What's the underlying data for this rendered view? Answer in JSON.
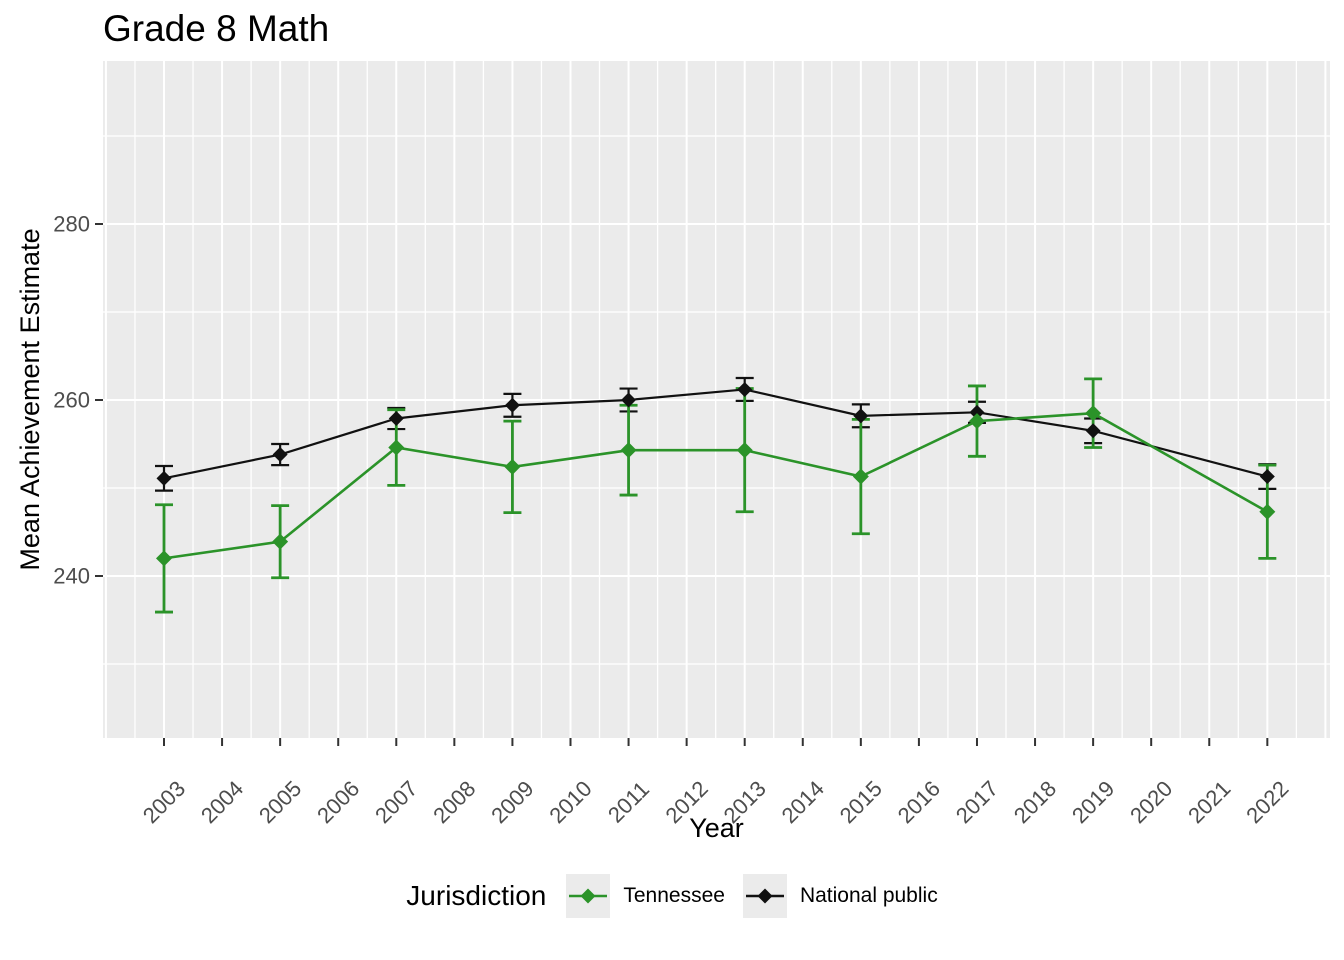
{
  "chart_data": {
    "type": "line",
    "title": "Grade 8 Math",
    "xlabel": "Year",
    "ylabel": "Mean Achievement Estimate",
    "legend": {
      "title": "Jurisdiction",
      "position": "bottom"
    },
    "x_tick_labels": [
      "2003",
      "2004",
      "2005",
      "2006",
      "2007",
      "2008",
      "2009",
      "2010",
      "2011",
      "2012",
      "2013",
      "2014",
      "2015",
      "2016",
      "2017",
      "2018",
      "2019",
      "2020",
      "2021",
      "2022"
    ],
    "y_tick_labels": [
      "240",
      "260",
      "280"
    ],
    "y_major_gridlines": [
      240,
      260,
      280
    ],
    "y_minor_gridlines": [
      230,
      250,
      270,
      290
    ],
    "x_gridline_year_range": [
      2002,
      2023
    ],
    "x_axis_year_range": [
      2003,
      2022
    ],
    "ylim_panel": [
      221,
      298.5
    ],
    "grid": true,
    "x": [
      2003,
      2005,
      2007,
      2009,
      2011,
      2013,
      2015,
      2017,
      2019,
      2022
    ],
    "series": [
      {
        "name": "Tennessee",
        "color": "#2B9329",
        "values": [
          242.0,
          243.9,
          254.6,
          252.4,
          254.3,
          254.3,
          251.3,
          257.6,
          258.5,
          247.3
        ],
        "ci_low": [
          235.9,
          239.8,
          250.3,
          247.2,
          249.2,
          247.3,
          244.8,
          253.6,
          254.6,
          242.0
        ],
        "ci_high": [
          248.1,
          248.0,
          258.9,
          257.6,
          259.4,
          261.3,
          257.8,
          261.6,
          262.4,
          252.6
        ]
      },
      {
        "name": "National public",
        "color": "#111111",
        "values": [
          251.1,
          253.8,
          257.9,
          259.4,
          260.0,
          261.2,
          258.2,
          258.6,
          256.5,
          251.3
        ],
        "ci_low": [
          249.7,
          252.6,
          256.7,
          258.1,
          258.7,
          259.9,
          256.9,
          257.4,
          255.1,
          249.9
        ],
        "ci_high": [
          252.5,
          255.0,
          259.1,
          260.7,
          261.3,
          262.5,
          259.5,
          259.8,
          257.9,
          252.7
        ]
      }
    ],
    "colors": {
      "panel_background": "#EBEBEB",
      "gridline": "#FFFFFF",
      "tick_mark": "#333333",
      "tick_label": "#4D4D4D",
      "axis_title": "#000000",
      "legend_key_background": "#EBEBEB"
    }
  }
}
